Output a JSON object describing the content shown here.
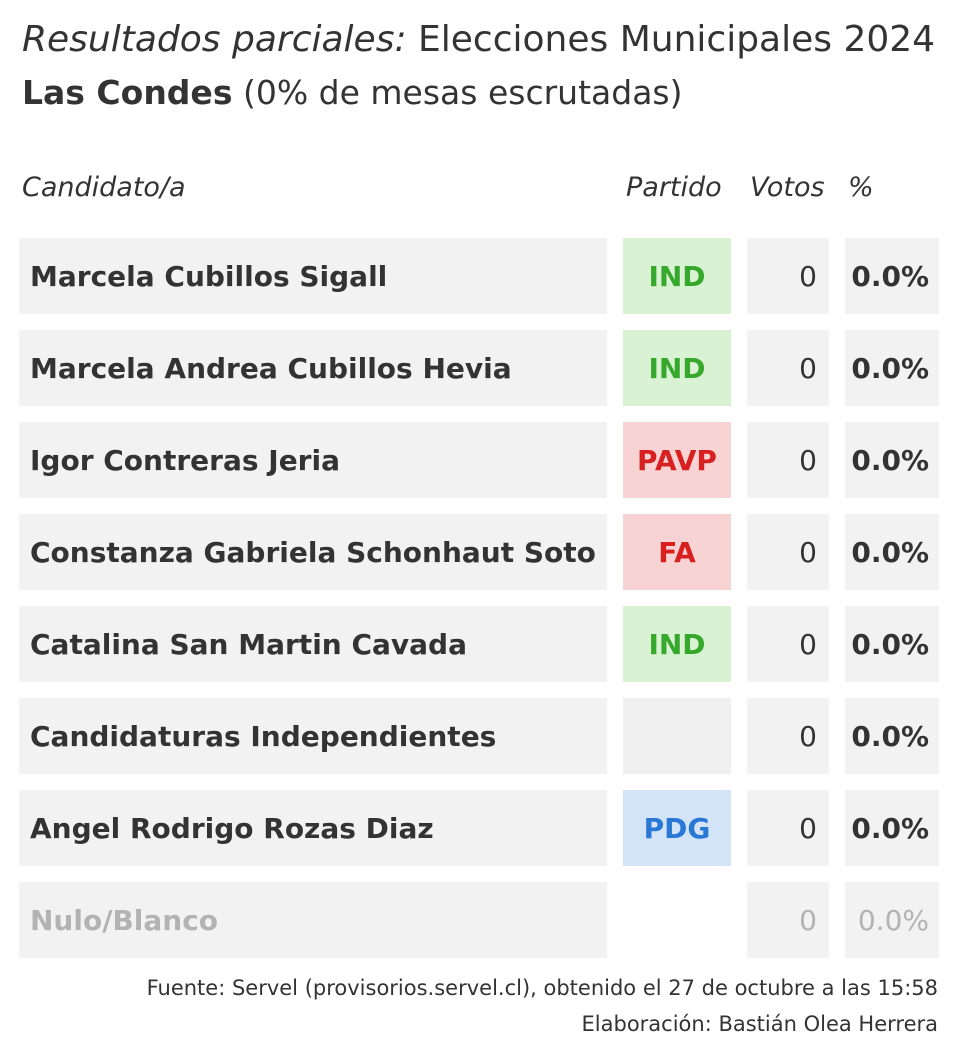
{
  "title": {
    "italic_part": "Resultados parciales:",
    "rest": " Elecciones Municipales 2024",
    "commune": "Las Condes",
    "progress": " (0% de mesas escrutadas)"
  },
  "headers": {
    "candidate": "Candidato/a",
    "party": "Partido",
    "votes": "Votos",
    "percent": "%"
  },
  "rows": [
    {
      "name": "Marcela Cubillos Sigall",
      "party": "IND",
      "party_color": "#36a82b",
      "party_bg": "#d9f2d3",
      "votes": "0",
      "percent": "0.0%"
    },
    {
      "name": "Marcela Andrea Cubillos Hevia",
      "party": "IND",
      "party_color": "#36a82b",
      "party_bg": "#d9f2d3",
      "votes": "0",
      "percent": "0.0%"
    },
    {
      "name": "Igor Contreras Jeria",
      "party": "PAVP",
      "party_color": "#d92020",
      "party_bg": "#f8d3d3",
      "votes": "0",
      "percent": "0.0%"
    },
    {
      "name": "Constanza Gabriela Schonhaut Soto",
      "party": "FA",
      "party_color": "#d92020",
      "party_bg": "#f8d3d3",
      "votes": "0",
      "percent": "0.0%"
    },
    {
      "name": "Catalina San Martin Cavada",
      "party": "IND",
      "party_color": "#36a82b",
      "party_bg": "#d9f2d3",
      "votes": "0",
      "percent": "0.0%"
    },
    {
      "name": "Candidaturas Independientes",
      "party": "",
      "party_color": "#333333",
      "party_bg": "#f0f0f0",
      "votes": "0",
      "percent": "0.0%"
    },
    {
      "name": "Angel Rodrigo Rozas Diaz",
      "party": "PDG",
      "party_color": "#2a78d6",
      "party_bg": "#d3e4f8",
      "votes": "0",
      "percent": "0.0%"
    },
    {
      "name": "Nulo/Blanco",
      "party": "",
      "party_color": "#b3b3b3",
      "party_bg": "#ffffff",
      "votes": "0",
      "percent": "0.0%",
      "muted": true
    }
  ],
  "footer": {
    "source": "Fuente: Servel (provisorios.servel.cl), obtenido el 27 de octubre a las 15:58",
    "credit": "Elaboración: Bastián Olea Herrera"
  }
}
